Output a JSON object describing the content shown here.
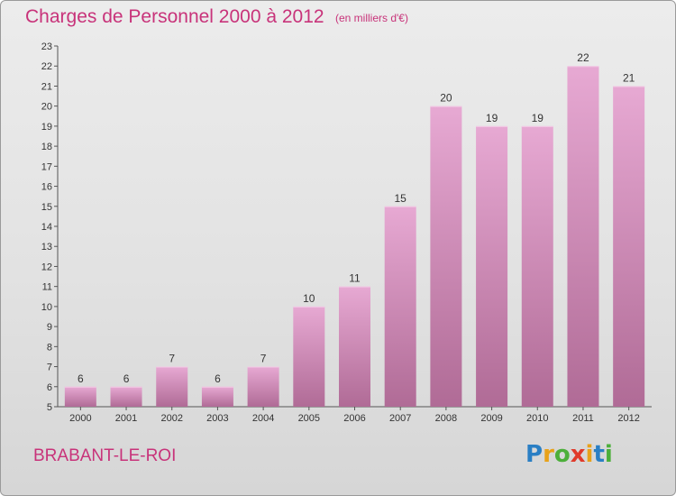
{
  "header": {
    "title": "Charges de Personnel 2000 à 2012",
    "subtitle": "(en milliers d'€)"
  },
  "footer": {
    "commune": "BRABANT-LE-ROI",
    "logo_letters": [
      "P",
      "r",
      "o",
      "x",
      "i",
      "t",
      "i"
    ],
    "logo_colors": [
      "#2a7fc4",
      "#e8a21a",
      "#4caf3a",
      "#e03a2a",
      "#e8a21a",
      "#2a7fc4",
      "#4caf3a"
    ]
  },
  "chart_data": {
    "type": "bar",
    "categories": [
      "2000",
      "2001",
      "2002",
      "2003",
      "2004",
      "2005",
      "2006",
      "2007",
      "2008",
      "2009",
      "2010",
      "2011",
      "2012"
    ],
    "values": [
      6,
      6,
      7,
      6,
      7,
      10,
      11,
      15,
      20,
      19,
      19,
      22,
      21
    ],
    "ylim": [
      5,
      23
    ],
    "yticks": [
      5,
      6,
      7,
      8,
      9,
      10,
      11,
      12,
      13,
      14,
      15,
      16,
      17,
      18,
      19,
      20,
      21,
      22,
      23
    ],
    "grid": false,
    "bar_color_top": "#e7a9d3",
    "bar_color_bottom": "#b06b96"
  }
}
